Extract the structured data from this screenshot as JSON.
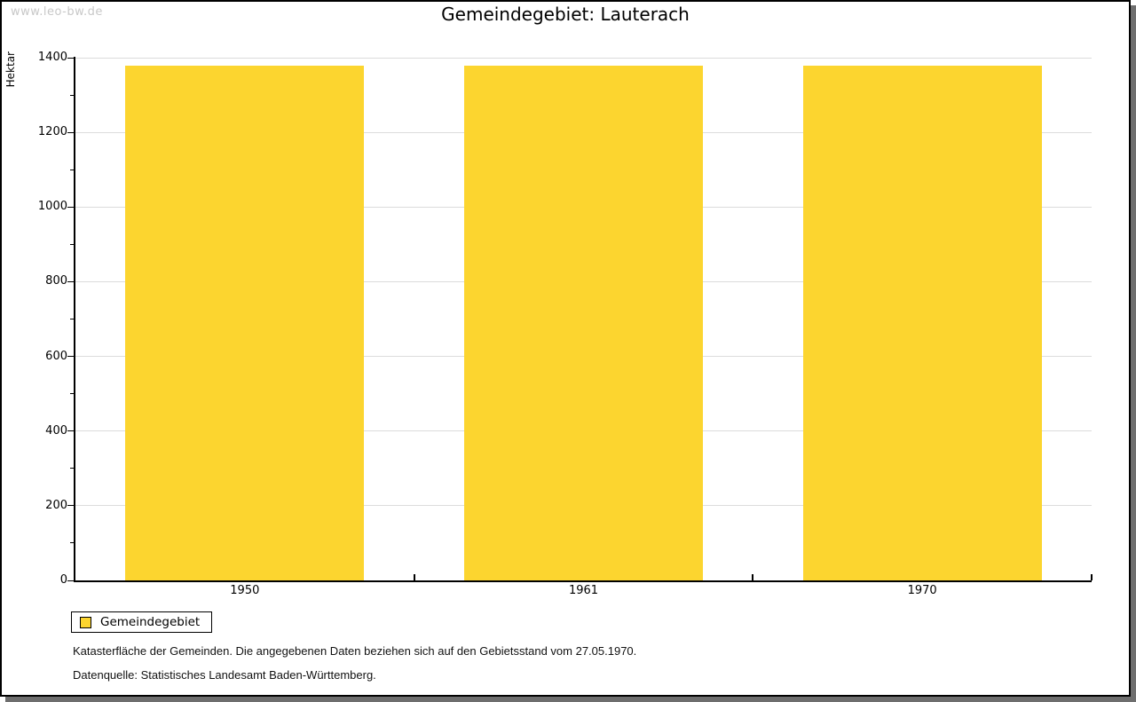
{
  "watermark": "www.leo-bw.de",
  "chart_data": {
    "type": "bar",
    "title": "Gemeindegebiet: Lauterach",
    "categories": [
      "1950",
      "1961",
      "1970"
    ],
    "series": [
      {
        "name": "Gemeindegebiet",
        "values": [
          1378,
          1378,
          1378
        ]
      }
    ],
    "xlabel": "",
    "ylabel": "Hektar",
    "ylim": [
      0,
      1400
    ],
    "ytick_step": 200,
    "yminor_step": 100,
    "grid": true,
    "legend_position": "bottom-left",
    "colors": {
      "bar": "#fcd52f",
      "gridline": "#dcdcdc",
      "axis": "#000000",
      "watermark": "#c8c8c8",
      "shadow": "#6e6e6e"
    }
  },
  "legend": {
    "items": [
      {
        "label": "Gemeindegebiet",
        "color": "#fcd52f"
      }
    ]
  },
  "notes": [
    "Katasterfläche der Gemeinden. Die angegebenen Daten beziehen sich auf den Gebietsstand vom 27.05.1970.",
    "Datenquelle: Statistisches Landesamt Baden-Württemberg."
  ]
}
